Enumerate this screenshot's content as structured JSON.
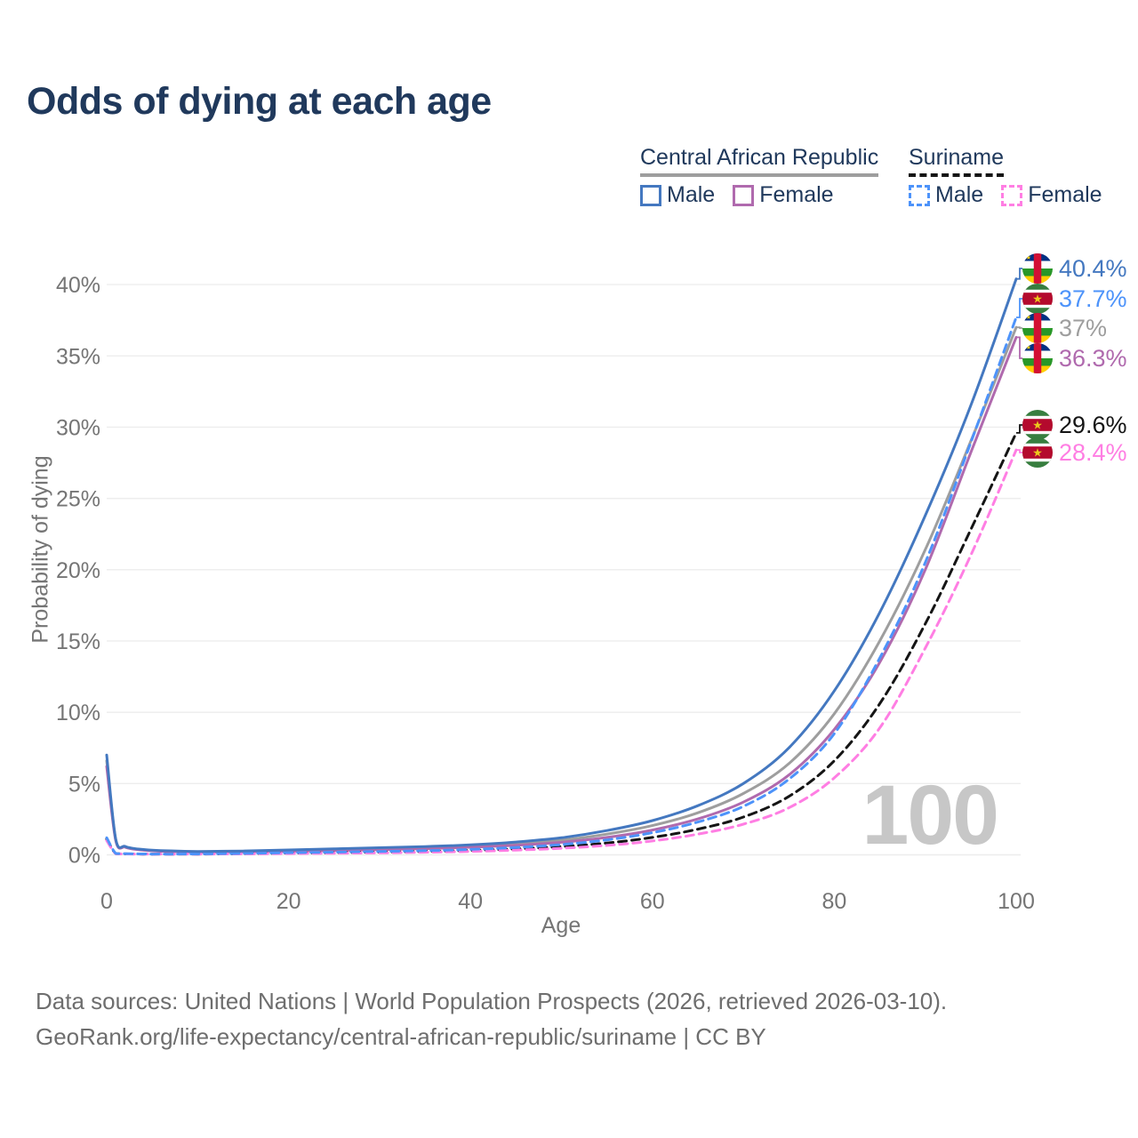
{
  "title": "Odds of dying at each age",
  "legend": {
    "groups": [
      {
        "label": "Central African Republic",
        "style": "solid",
        "underline_color": "#9e9e9e",
        "items": [
          {
            "label": "Male",
            "color": "#4478c0",
            "dashed": false
          },
          {
            "label": "Female",
            "color": "#b06aae",
            "dashed": false
          }
        ]
      },
      {
        "label": "Suriname",
        "style": "dashed",
        "underline_color": "#151515",
        "items": [
          {
            "label": "Male",
            "color": "#4d93fa",
            "dashed": true
          },
          {
            "label": "Female",
            "color": "#ff7ee3",
            "dashed": true
          }
        ]
      }
    ]
  },
  "watermark": "100",
  "footer": {
    "line1": "Data sources: United Nations | World Population Prospects (2026, retrieved 2026-03-10).",
    "line2": "GeoRank.org/life-expectancy/central-african-republic/suriname | CC BY"
  },
  "chart_data": {
    "type": "line",
    "title": "Odds of dying at each age",
    "xlabel": "Age",
    "ylabel": "Probability of dying",
    "xlim": [
      0,
      100
    ],
    "ylim": [
      0,
      42.5
    ],
    "grid": "horizontal",
    "xticks": [
      0,
      20,
      40,
      60,
      80,
      100
    ],
    "yticks": [
      0,
      5,
      10,
      15,
      20,
      25,
      30,
      35,
      40
    ],
    "ytick_labels": [
      "0%",
      "5%",
      "10%",
      "15%",
      "20%",
      "25%",
      "30%",
      "35%",
      "40%"
    ],
    "ages": [
      0,
      1,
      2,
      3,
      4,
      5,
      7,
      10,
      15,
      20,
      25,
      30,
      35,
      40,
      45,
      50,
      55,
      60,
      65,
      70,
      75,
      80,
      85,
      90,
      95,
      100
    ],
    "series": [
      {
        "id": "car-male",
        "name": "Central African Republic — Male",
        "country": "Central African Republic",
        "sex": "Male",
        "color": "#4478c0",
        "dash": null,
        "flag": "car",
        "end_label": "40.4%",
        "end_value_pct": 40.4,
        "values": [
          7.0,
          1.1,
          0.6,
          0.45,
          0.38,
          0.33,
          0.28,
          0.24,
          0.27,
          0.34,
          0.42,
          0.5,
          0.58,
          0.7,
          0.9,
          1.2,
          1.7,
          2.4,
          3.45,
          5.0,
          7.5,
          11.5,
          17.0,
          23.8,
          31.5,
          40.4
        ]
      },
      {
        "id": "sur-male",
        "name": "Suriname — Male",
        "country": "Suriname",
        "sex": "Male",
        "color": "#4d93fa",
        "dash": [
          9,
          6
        ],
        "flag": "sur",
        "end_label": "37.7%",
        "end_value_pct": 37.7,
        "values": [
          1.2,
          0.1,
          0.08,
          0.07,
          0.06,
          0.05,
          0.05,
          0.06,
          0.1,
          0.15,
          0.19,
          0.24,
          0.29,
          0.38,
          0.52,
          0.72,
          1.05,
          1.55,
          2.3,
          3.4,
          5.3,
          8.5,
          13.8,
          20.5,
          28.9,
          37.7
        ]
      },
      {
        "id": "car-both",
        "name": "Central African Republic — Both sexes",
        "country": "Central African Republic",
        "sex": "Both",
        "color": "#9e9e9e",
        "dash": null,
        "flag": "car",
        "end_label": "37%",
        "end_value_pct": 37.0,
        "values": [
          6.6,
          1.05,
          0.57,
          0.42,
          0.35,
          0.3,
          0.25,
          0.21,
          0.24,
          0.29,
          0.36,
          0.43,
          0.5,
          0.61,
          0.78,
          1.03,
          1.45,
          2.05,
          2.95,
          4.3,
          6.4,
          9.9,
          15.0,
          21.4,
          29.0,
          37.0
        ]
      },
      {
        "id": "car-female",
        "name": "Central African Republic — Female",
        "country": "Central African Republic",
        "sex": "Female",
        "color": "#b06aae",
        "dash": null,
        "flag": "car",
        "end_label": "36.3%",
        "end_value_pct": 36.3,
        "values": [
          6.2,
          1.0,
          0.54,
          0.4,
          0.33,
          0.28,
          0.23,
          0.19,
          0.21,
          0.25,
          0.3,
          0.36,
          0.43,
          0.53,
          0.67,
          0.88,
          1.22,
          1.74,
          2.52,
          3.7,
          5.6,
          8.8,
          13.5,
          20.0,
          28.2,
          36.3
        ]
      },
      {
        "id": "sur-both",
        "name": "Suriname — Both sexes",
        "country": "Suriname",
        "sex": "Both",
        "color": "#151515",
        "dash": [
          9,
          6
        ],
        "flag": "sur",
        "end_label": "29.6%",
        "end_value_pct": 29.6,
        "values": [
          1.1,
          0.09,
          0.07,
          0.06,
          0.05,
          0.045,
          0.04,
          0.05,
          0.08,
          0.12,
          0.15,
          0.19,
          0.24,
          0.31,
          0.42,
          0.58,
          0.83,
          1.22,
          1.8,
          2.65,
          4.1,
          6.6,
          10.6,
          16.2,
          22.8,
          29.6
        ]
      },
      {
        "id": "sur-female",
        "name": "Suriname — Female",
        "country": "Suriname",
        "sex": "Female",
        "color": "#ff7ee3",
        "dash": [
          9,
          6
        ],
        "flag": "sur",
        "end_label": "28.4%",
        "end_value_pct": 28.4,
        "values": [
          1.0,
          0.08,
          0.06,
          0.05,
          0.045,
          0.04,
          0.04,
          0.045,
          0.06,
          0.09,
          0.11,
          0.14,
          0.18,
          0.24,
          0.33,
          0.46,
          0.66,
          0.97,
          1.45,
          2.15,
          3.3,
          5.4,
          8.9,
          14.5,
          21.0,
          28.4
        ]
      }
    ]
  }
}
